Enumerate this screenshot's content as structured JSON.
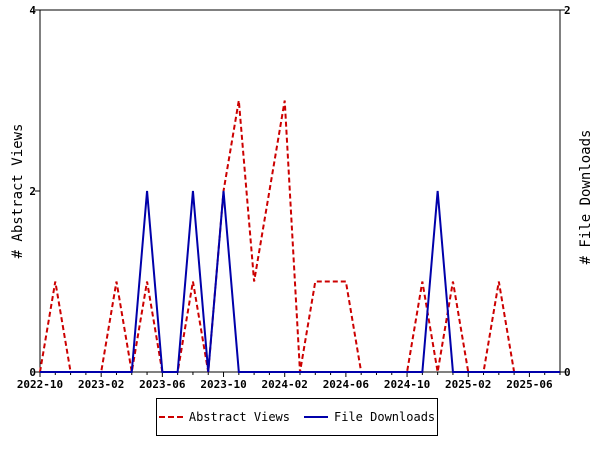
{
  "chart_data": {
    "type": "line",
    "x_labels": [
      "2022-10",
      "2023-02",
      "2023-06",
      "2023-10",
      "2024-02",
      "2024-06",
      "2024-10",
      "2025-02",
      "2025-06"
    ],
    "x_months": [
      "2022-10",
      "2022-11",
      "2022-12",
      "2023-01",
      "2023-02",
      "2023-03",
      "2023-04",
      "2023-05",
      "2023-06",
      "2023-07",
      "2023-08",
      "2023-09",
      "2023-10",
      "2023-11",
      "2023-12",
      "2024-01",
      "2024-02",
      "2024-03",
      "2024-04",
      "2024-05",
      "2024-06",
      "2024-07",
      "2024-08",
      "2024-09",
      "2024-10",
      "2024-11",
      "2024-12",
      "2025-01",
      "2025-02",
      "2025-03",
      "2025-04",
      "2025-05",
      "2025-06",
      "2025-07",
      "2025-08"
    ],
    "ylabel_left": "# Abstract Views",
    "ylabel_right": "# File Downloads",
    "ylim_left": [
      0,
      4
    ],
    "ylim_right": [
      0,
      2
    ],
    "yticks_left": [
      0,
      2,
      4
    ],
    "yticks_right": [
      0,
      2
    ],
    "grid": false,
    "legend_position": "bottom",
    "series": [
      {
        "name": "Abstract Views",
        "axis": "left",
        "color": "#cc0000",
        "style": "dashed",
        "values": [
          0,
          1,
          0,
          0,
          0,
          1,
          0,
          1,
          0,
          0,
          1,
          0,
          2,
          3,
          1,
          2,
          3,
          0,
          1,
          1,
          1,
          0,
          0,
          0,
          0,
          1,
          0,
          1,
          0,
          0,
          1,
          0,
          0,
          0,
          0
        ]
      },
      {
        "name": "File Downloads",
        "axis": "right",
        "color": "#0000aa",
        "style": "solid",
        "values": [
          0,
          0,
          0,
          0,
          0,
          0,
          0,
          1,
          0,
          0,
          1,
          0,
          1,
          0,
          0,
          0,
          0,
          0,
          0,
          0,
          0,
          0,
          0,
          0,
          0,
          0,
          1,
          0,
          0,
          0,
          0,
          0,
          0,
          0,
          0
        ]
      }
    ]
  }
}
